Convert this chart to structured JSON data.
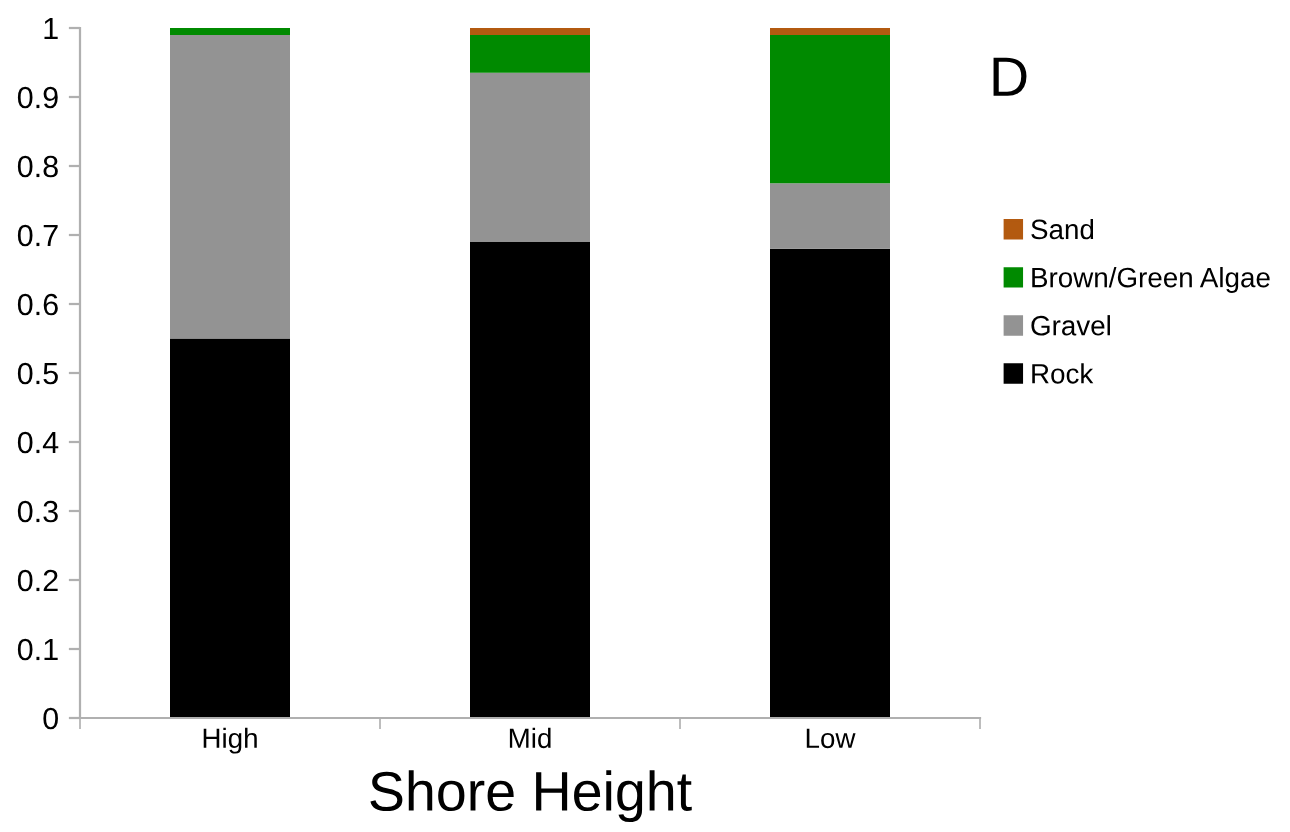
{
  "chart_data": {
    "type": "bar",
    "stacked": true,
    "xlabel": "Shore Height",
    "categories": [
      "High",
      "Mid",
      "Low"
    ],
    "series": [
      {
        "name": "Rock",
        "color": "#000000",
        "values": [
          0.55,
          0.69,
          0.68
        ]
      },
      {
        "name": "Gravel",
        "color": "#939393",
        "values": [
          0.44,
          0.245,
          0.095
        ]
      },
      {
        "name": "Brown/Green Algae",
        "color": "#008a00",
        "values": [
          0.01,
          0.055,
          0.215
        ]
      },
      {
        "name": "Sand",
        "color": "#b35a10",
        "values": [
          0,
          0.01,
          0.01
        ]
      }
    ],
    "ylim": [
      0,
      1
    ],
    "yticks": [
      0,
      0.1,
      0.2,
      0.3,
      0.4,
      0.5,
      0.6,
      0.7,
      0.8,
      0.9,
      1
    ],
    "annotations": [
      "D"
    ],
    "legend": "right",
    "grid": false
  }
}
